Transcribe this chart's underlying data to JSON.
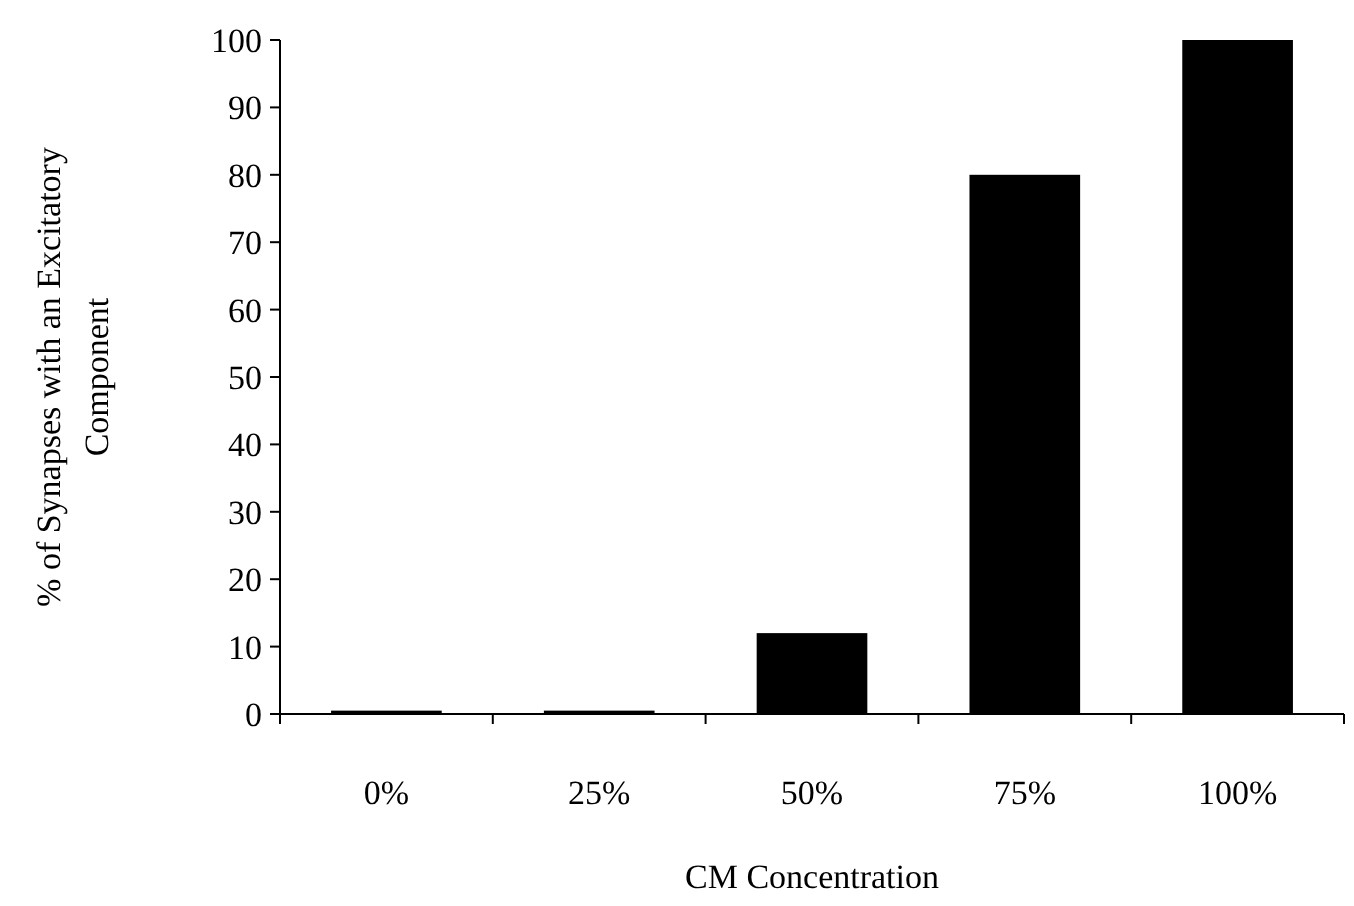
{
  "chart_data": {
    "type": "bar",
    "xlabel": "CM Concentration",
    "ylabel": "% of Synapses with an Excitatory Component",
    "categories": [
      "0%",
      "25%",
      "50%",
      "75%",
      "100%"
    ],
    "values": [
      0.5,
      0.5,
      12,
      80,
      100
    ],
    "color": "#000000",
    "ylim": [
      0,
      100
    ],
    "yticks": [
      0,
      10,
      20,
      30,
      40,
      50,
      60,
      70,
      80,
      90,
      100
    ]
  }
}
